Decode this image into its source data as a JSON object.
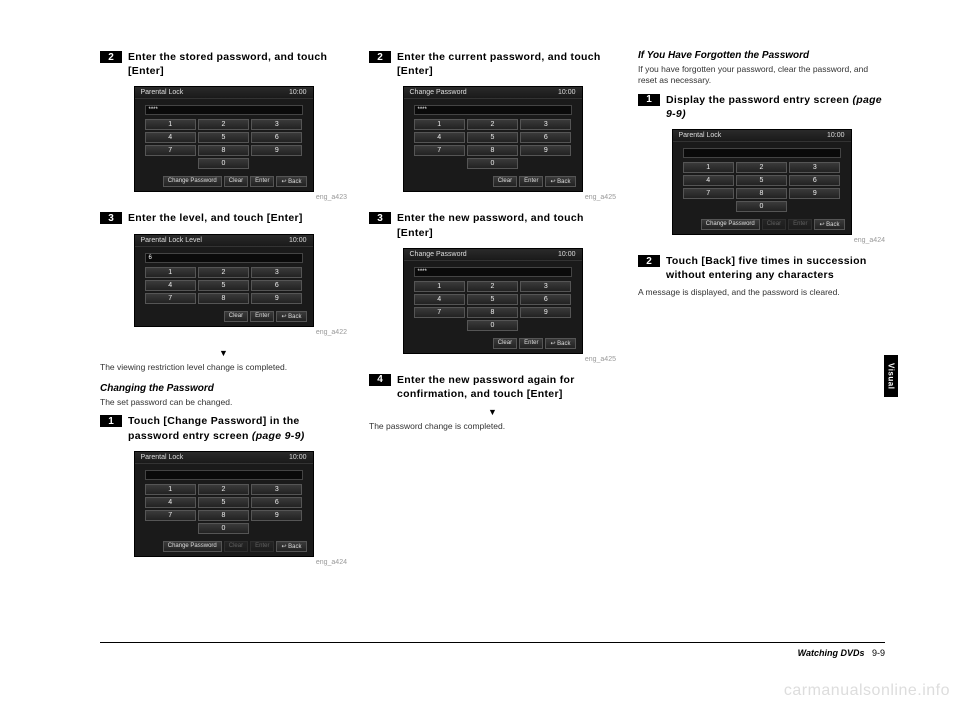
{
  "sideTab": "Visual",
  "watermark": "carmanualsonline.info",
  "footer": {
    "title": "Watching DVDs",
    "page": "9-9"
  },
  "col1": {
    "step2": {
      "num": "2",
      "text": "Enter the stored password, and touch [Enter]"
    },
    "screenA": {
      "title": "Parental Lock",
      "time": "10:00",
      "input": "****",
      "caption": "eng_a423",
      "keys": [
        "1",
        "2",
        "3",
        "4",
        "5",
        "6",
        "7",
        "8",
        "9",
        "0"
      ],
      "footer": [
        "Change Password",
        "Clear",
        "Enter",
        "Back"
      ]
    },
    "step3": {
      "num": "3",
      "text": "Enter the level, and touch [Enter]"
    },
    "screenB": {
      "title": "Parental Lock Level",
      "time": "10:00",
      "input": "6",
      "caption": "eng_a422",
      "keys": [
        "1",
        "2",
        "3",
        "4",
        "5",
        "6",
        "7",
        "8",
        "9"
      ],
      "footer": [
        "Clear",
        "Enter",
        "Back"
      ]
    },
    "note1": "The viewing restriction level change is completed.",
    "sub1": "Changing the Password",
    "sub1desc": "The set password can be changed.",
    "step1": {
      "num": "1",
      "text": "Touch [Change Password] in the password entry screen ",
      "ref": "(page 9-9)"
    },
    "screenC": {
      "title": "Parental Lock",
      "time": "10:00",
      "input": "",
      "caption": "eng_a424",
      "keys": [
        "1",
        "2",
        "3",
        "4",
        "5",
        "6",
        "7",
        "8",
        "9",
        "0"
      ],
      "footer": [
        "Change Password",
        "Clear",
        "Enter",
        "Back"
      ],
      "dimIdx": [
        1,
        2
      ]
    }
  },
  "col2": {
    "step2": {
      "num": "2",
      "text": "Enter the current password, and touch [Enter]"
    },
    "screenA": {
      "title": "Change Password",
      "time": "10:00",
      "input": "****",
      "caption": "eng_a425",
      "keys": [
        "1",
        "2",
        "3",
        "4",
        "5",
        "6",
        "7",
        "8",
        "9",
        "0"
      ],
      "footer": [
        "Clear",
        "Enter",
        "Back"
      ]
    },
    "step3": {
      "num": "3",
      "text": "Enter the new password, and touch [Enter]"
    },
    "screenB": {
      "title": "Change Password",
      "time": "10:00",
      "input": "****",
      "caption": "eng_a425",
      "keys": [
        "1",
        "2",
        "3",
        "4",
        "5",
        "6",
        "7",
        "8",
        "9",
        "0"
      ],
      "footer": [
        "Clear",
        "Enter",
        "Back"
      ]
    },
    "step4": {
      "num": "4",
      "text": "Enter the new password again for confirmation, and touch [Enter]"
    },
    "note1": "The password change is completed."
  },
  "col3": {
    "sub1": "If You Have Forgotten the Password",
    "sub1desc": "If you have forgotten your password, clear the password, and reset as necessary.",
    "step1": {
      "num": "1",
      "text": "Display the password entry screen ",
      "ref": "(page 9-9)"
    },
    "screenA": {
      "title": "Parental Lock",
      "time": "10:00",
      "input": "",
      "caption": "eng_a424",
      "keys": [
        "1",
        "2",
        "3",
        "4",
        "5",
        "6",
        "7",
        "8",
        "9",
        "0"
      ],
      "footer": [
        "Change Password",
        "Clear",
        "Enter",
        "Back"
      ],
      "dimIdx": [
        1,
        2
      ]
    },
    "step2": {
      "num": "2",
      "text": "Touch [Back] five times in succession without entering any characters"
    },
    "note1": "A message is displayed, and the password is cleared."
  }
}
